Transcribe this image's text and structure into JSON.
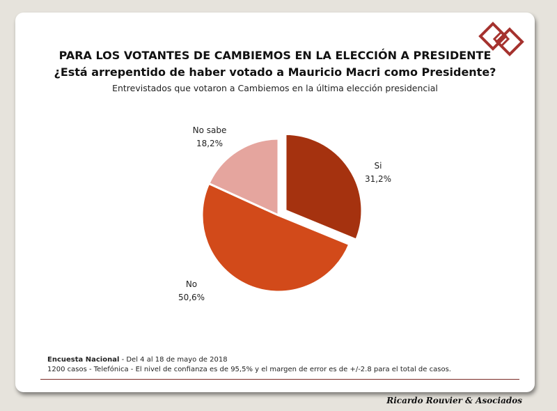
{
  "header": {
    "title": "PARA LOS VOTANTES DE CAMBIEMOS EN LA ELECCIÓN A PRESIDENTE",
    "subtitle": "¿Está arrepentido de haber votado a Mauricio Macri como Presidente?",
    "note": "Entrevistados que votaron a Cambiemos en la última elección presidencial"
  },
  "chart_data": {
    "type": "pie",
    "slices": [
      {
        "label": "Si",
        "value": 31.2,
        "value_label": "31,2%",
        "color": "#a5320f",
        "exploded": true
      },
      {
        "label": "No",
        "value": 50.6,
        "value_label": "50,6%",
        "color": "#d24a1a",
        "exploded": false
      },
      {
        "label": "No sabe",
        "value": 18.2,
        "value_label": "18,2%",
        "color": "#e5a59e",
        "exploded": false
      }
    ]
  },
  "footer": {
    "survey_name": "Encuesta Nacional",
    "survey_dates": "  - Del 4 al 18 de mayo de 2018",
    "details": "1200 casos - Telefónica  - El nivel de confianza es de 95,5% y el margen de error es de +/-2.8 para el total de casos."
  },
  "brand": "Ricardo Rouvier & Asociados",
  "colors": {
    "accent": "#a5322e",
    "background": "#e6e3dc"
  }
}
